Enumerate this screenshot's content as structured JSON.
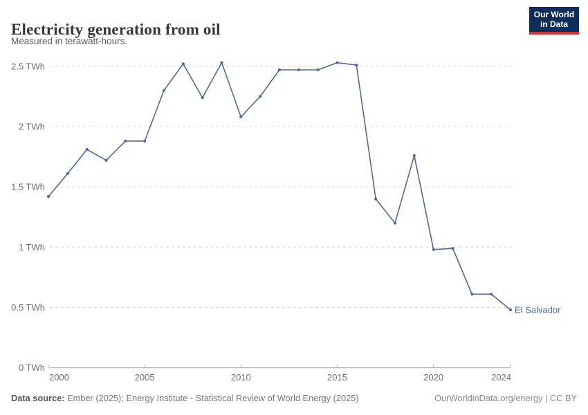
{
  "header": {
    "title": "Electricity generation from oil",
    "subtitle": "Measured in terawatt-hours.",
    "logo": {
      "line1": "Our World",
      "line2": "in Data",
      "bg_color": "#0d2e5b",
      "bar_color": "#dc2f2f"
    }
  },
  "chart_data": {
    "type": "line",
    "title": "Electricity generation from oil",
    "subtitle": "Measured in terawatt-hours.",
    "unit": "TWh",
    "x": [
      2000,
      2001,
      2002,
      2003,
      2004,
      2005,
      2006,
      2007,
      2008,
      2009,
      2010,
      2011,
      2012,
      2013,
      2014,
      2015,
      2016,
      2017,
      2018,
      2019,
      2020,
      2021,
      2022,
      2023,
      2024
    ],
    "series": [
      {
        "name": "El Salvador",
        "color": "#4C6A9C",
        "values": [
          1.42,
          1.61,
          1.81,
          1.72,
          1.88,
          1.88,
          2.3,
          2.52,
          2.24,
          2.53,
          2.08,
          2.25,
          2.47,
          2.47,
          2.47,
          2.53,
          2.51,
          1.4,
          1.2,
          1.76,
          0.98,
          0.99,
          0.61,
          0.61,
          0.48
        ]
      }
    ],
    "xlim": [
      2000,
      2024
    ],
    "ylim": [
      0,
      2.5
    ],
    "x_ticks": [
      2000,
      2005,
      2010,
      2015,
      2020,
      2024
    ],
    "y_ticks": [
      {
        "v": 0,
        "label": "0 TWh"
      },
      {
        "v": 0.5,
        "label": "0.5 TWh"
      },
      {
        "v": 1,
        "label": "1 TWh"
      },
      {
        "v": 1.5,
        "label": "1.5 TWh"
      },
      {
        "v": 2,
        "label": "2 TWh"
      },
      {
        "v": 2.5,
        "label": "2.5 TWh"
      }
    ],
    "grid": "horizontal-dashed",
    "legend_position": "end-of-line",
    "end_label": "El Salvador"
  },
  "footer": {
    "datasource_label": "Data source:",
    "datasource_text": " Ember (2025); Energy Institute - Statistical Review of World Energy (2025)",
    "credit": "OurWorldinData.org/energy | CC BY"
  }
}
